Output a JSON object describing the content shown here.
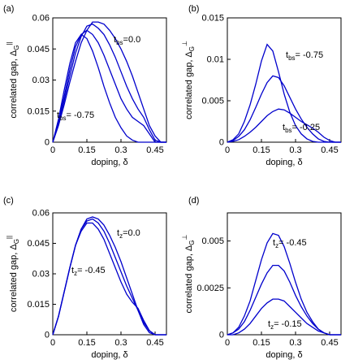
{
  "chart_data": [
    {
      "type": "line",
      "panel": "(a)",
      "xlabel": "doping, δ",
      "ylabel": {
        "base": "correlated gap, Δ",
        "sub": "G",
        "sup": "||"
      },
      "x": [
        0,
        0.025,
        0.05,
        0.075,
        0.1,
        0.125,
        0.15,
        0.175,
        0.2,
        0.225,
        0.25,
        0.275,
        0.3,
        0.325,
        0.35,
        0.375,
        0.4,
        0.425,
        0.45,
        0.475,
        0.5
      ],
      "series": [
        {
          "color": "#0000cc",
          "values": [
            0,
            0.008,
            0.018,
            0.029,
            0.039,
            0.048,
            0.054,
            0.058,
            0.058,
            0.057,
            0.054,
            0.05,
            0.045,
            0.039,
            0.032,
            0.024,
            0.016,
            0.008,
            0.003,
            0,
            0
          ]
        },
        {
          "color": "#0000cc",
          "values": [
            0,
            0.009,
            0.02,
            0.032,
            0.043,
            0.051,
            0.056,
            0.057,
            0.055,
            0.052,
            0.047,
            0.041,
            0.034,
            0.027,
            0.021,
            0.016,
            0.012,
            0.006,
            0.001,
            0,
            0
          ]
        },
        {
          "color": "#0000cc",
          "values": [
            0,
            0.01,
            0.022,
            0.035,
            0.046,
            0.052,
            0.054,
            0.052,
            0.048,
            0.042,
            0.035,
            0.028,
            0.021,
            0.016,
            0.012,
            0.01,
            0.008,
            0.004,
            0,
            0,
            0
          ]
        },
        {
          "color": "#0000cc",
          "values": [
            0,
            0.011,
            0.025,
            0.038,
            0.048,
            0.052,
            0.05,
            0.044,
            0.036,
            0.027,
            0.019,
            0.012,
            0.007,
            0.003,
            0.001,
            0,
            0,
            0,
            0,
            0,
            0
          ]
        }
      ],
      "annotations": [
        {
          "base": "t",
          "sub": "bs",
          "rest": "=0.0"
        },
        {
          "base": "t",
          "sub": "bs",
          "rest": "= -0.75"
        }
      ],
      "xlim": [
        0,
        0.5
      ],
      "xticks": [
        0,
        0.15,
        0.3,
        0.45
      ],
      "ylim": [
        0,
        0.06
      ],
      "yticks": [
        0,
        0.015,
        0.03,
        0.045,
        0.06
      ]
    },
    {
      "type": "line",
      "panel": "(b)",
      "xlabel": "doping, δ",
      "ylabel": {
        "base": "correlated gap, Δ",
        "sub": "G",
        "sup": "⊥"
      },
      "x": [
        0,
        0.025,
        0.05,
        0.075,
        0.1,
        0.125,
        0.15,
        0.175,
        0.2,
        0.225,
        0.25,
        0.275,
        0.3,
        0.325,
        0.35,
        0.375,
        0.4,
        0.425,
        0.45,
        0.475,
        0.5
      ],
      "series": [
        {
          "color": "#0000cc",
          "values": [
            0,
            0.0003,
            0.001,
            0.0025,
            0.0045,
            0.007,
            0.0098,
            0.0118,
            0.011,
            0.0085,
            0.0058,
            0.0036,
            0.002,
            0.001,
            0.0004,
            0.0001,
            0,
            0,
            0,
            0,
            0
          ]
        },
        {
          "color": "#0000cc",
          "values": [
            0,
            0.0002,
            0.0007,
            0.0015,
            0.0027,
            0.0042,
            0.0058,
            0.0072,
            0.008,
            0.0078,
            0.0068,
            0.0054,
            0.004,
            0.0028,
            0.0018,
            0.001,
            0.0004,
            0.0001,
            0,
            0,
            0
          ]
        },
        {
          "color": "#0000cc",
          "values": [
            0,
            0.0001,
            0.0003,
            0.0007,
            0.0012,
            0.0018,
            0.0025,
            0.0032,
            0.0037,
            0.004,
            0.0039,
            0.0035,
            0.003,
            0.0025,
            0.0021,
            0.0017,
            0.0012,
            0.0006,
            0.0002,
            0,
            0
          ]
        }
      ],
      "annotations": [
        {
          "base": "t",
          "sub": "bs",
          "rest": "= -0.75"
        },
        {
          "base": "t",
          "sub": "bs",
          "rest": "= -0.25"
        }
      ],
      "xlim": [
        0,
        0.5
      ],
      "xticks": [
        0,
        0.15,
        0.3,
        0.45
      ],
      "ylim": [
        0,
        0.015
      ],
      "yticks": [
        0,
        0.005,
        0.01,
        0.015
      ]
    },
    {
      "type": "line",
      "panel": "(c)",
      "xlabel": "doping, δ",
      "ylabel": {
        "base": "correlated gap, Δ",
        "sub": "G",
        "sup": "||"
      },
      "x": [
        0,
        0.025,
        0.05,
        0.075,
        0.1,
        0.125,
        0.15,
        0.175,
        0.2,
        0.225,
        0.25,
        0.275,
        0.3,
        0.325,
        0.35,
        0.375,
        0.4,
        0.425,
        0.45,
        0.475,
        0.5
      ],
      "series": [
        {
          "color": "#0000cc",
          "values": [
            0,
            0.009,
            0.021,
            0.033,
            0.044,
            0.052,
            0.057,
            0.058,
            0.057,
            0.054,
            0.049,
            0.043,
            0.036,
            0.028,
            0.02,
            0.012,
            0.005,
            0.001,
            0,
            0,
            0
          ]
        },
        {
          "color": "#0000cc",
          "values": [
            0,
            0.009,
            0.021,
            0.033,
            0.044,
            0.052,
            0.056,
            0.057,
            0.055,
            0.051,
            0.045,
            0.038,
            0.031,
            0.024,
            0.018,
            0.012,
            0.006,
            0.002,
            0,
            0,
            0
          ]
        },
        {
          "color": "#0000cc",
          "values": [
            0,
            0.009,
            0.021,
            0.033,
            0.044,
            0.051,
            0.055,
            0.055,
            0.052,
            0.047,
            0.04,
            0.033,
            0.026,
            0.02,
            0.016,
            0.013,
            0.007,
            0.002,
            0,
            0,
            0
          ]
        }
      ],
      "annotations": [
        {
          "base": "t",
          "sub": "z",
          "rest": "=0.0"
        },
        {
          "base": "t",
          "sub": "z",
          "rest": "= -0.45"
        }
      ],
      "xlim": [
        0,
        0.5
      ],
      "xticks": [
        0,
        0.15,
        0.3,
        0.45
      ],
      "ylim": [
        0,
        0.06
      ],
      "yticks": [
        0,
        0.015,
        0.03,
        0.045,
        0.06
      ]
    },
    {
      "type": "line",
      "panel": "(d)",
      "xlabel": "doping, δ",
      "ylabel": {
        "base": "correlated gap, Δ",
        "sub": "G",
        "sup": "⊥"
      },
      "x": [
        0,
        0.025,
        0.05,
        0.075,
        0.1,
        0.125,
        0.15,
        0.175,
        0.2,
        0.225,
        0.25,
        0.275,
        0.3,
        0.325,
        0.35,
        0.375,
        0.4,
        0.425,
        0.45,
        0.475,
        0.5
      ],
      "series": [
        {
          "color": "#0000cc",
          "values": [
            0,
            0.0001,
            0.0004,
            0.001,
            0.0018,
            0.0029,
            0.004,
            0.0049,
            0.0054,
            0.0053,
            0.0047,
            0.0038,
            0.0028,
            0.0019,
            0.0012,
            0.0007,
            0.0003,
            0.0001,
            0,
            0,
            0
          ]
        },
        {
          "color": "#0000cc",
          "values": [
            0,
            0.0001,
            0.0003,
            0.0007,
            0.0013,
            0.002,
            0.0027,
            0.0033,
            0.0037,
            0.0037,
            0.0034,
            0.0028,
            0.0021,
            0.0015,
            0.001,
            0.0006,
            0.0003,
            0.0001,
            0,
            0,
            0
          ]
        },
        {
          "color": "#0000cc",
          "values": [
            0,
            0,
            0.0001,
            0.0003,
            0.0006,
            0.001,
            0.0014,
            0.0017,
            0.0019,
            0.0019,
            0.0018,
            0.0015,
            0.0012,
            0.0009,
            0.0006,
            0.0004,
            0.0002,
            0.0001,
            0,
            0,
            0
          ]
        }
      ],
      "annotations": [
        {
          "base": "t",
          "sub": "z",
          "rest": "= -0.45"
        },
        {
          "base": "t",
          "sub": "z",
          "rest": "= -0.15"
        }
      ],
      "xlim": [
        0,
        0.5
      ],
      "xticks": [
        0,
        0.15,
        0.3,
        0.45
      ],
      "ylim": [
        0,
        0.0065
      ],
      "yticks": [
        0,
        0.0025,
        0.005
      ]
    }
  ]
}
